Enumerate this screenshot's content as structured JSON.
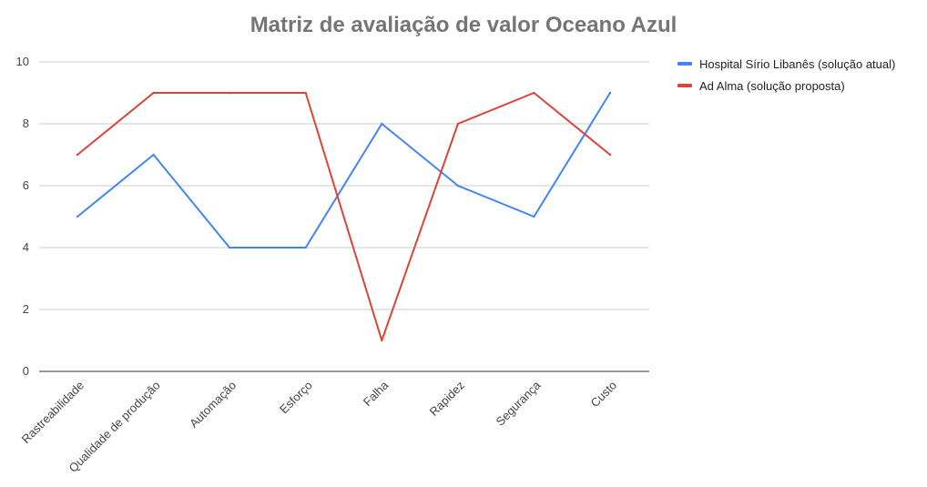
{
  "chart_data": {
    "type": "line",
    "title": "Matriz de avaliação de valor Oceano Azul",
    "xlabel": "",
    "ylabel": "",
    "categories": [
      "Rastreabilidade",
      "Qualidade de produção",
      "Automação",
      "Esforço",
      "Falha",
      "Rapidez",
      "Segurança",
      "Custo"
    ],
    "ylim": [
      0,
      10
    ],
    "yticks": [
      "0",
      "2",
      "4",
      "6",
      "8",
      "10"
    ],
    "grid": true,
    "legend_position": "top-right",
    "series": [
      {
        "name": "Hospital Sírio Libanês (solução atual)",
        "color": "#4285F4",
        "values": [
          5,
          7,
          4,
          4,
          8,
          6,
          5,
          9
        ]
      },
      {
        "name": "Ad Alma (solução proposta)",
        "color": "#DB4437",
        "values": [
          7,
          9,
          9,
          9,
          1,
          8,
          9,
          7
        ]
      }
    ]
  }
}
